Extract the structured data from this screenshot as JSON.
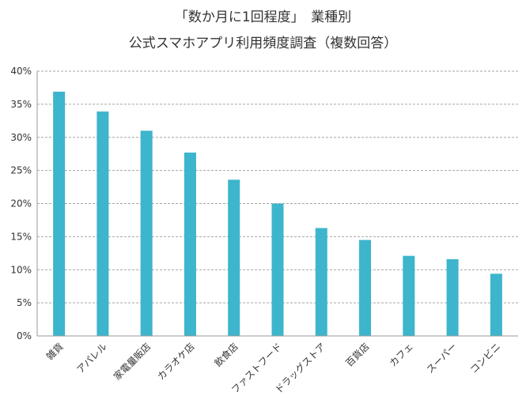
{
  "chart_data": {
    "type": "bar",
    "title_lines": [
      "「数か月に1回程度」　業種別",
      "公式スマホアプリ利用頻度調査（複数回答）"
    ],
    "xlabel": "",
    "ylabel": "",
    "ylim": [
      0,
      40
    ],
    "yticks": [
      "0%",
      "5%",
      "10%",
      "15%",
      "20%",
      "25%",
      "30%",
      "35%",
      "40%"
    ],
    "ytick_values": [
      0,
      5,
      10,
      15,
      20,
      25,
      30,
      35,
      40
    ],
    "grid": true,
    "legend": "none",
    "bar_color": "#3DB5CC",
    "categories": [
      "雑貨",
      "アパレル",
      "家電量販店",
      "カラオケ店",
      "飲食店",
      "ファストフード",
      "ドラッグストア",
      "百貨店",
      "カフェ",
      "スーパー",
      "コンビニ"
    ],
    "values": [
      36.9,
      33.9,
      31.0,
      27.7,
      23.6,
      20.0,
      16.3,
      14.5,
      12.1,
      11.6,
      9.4
    ]
  }
}
